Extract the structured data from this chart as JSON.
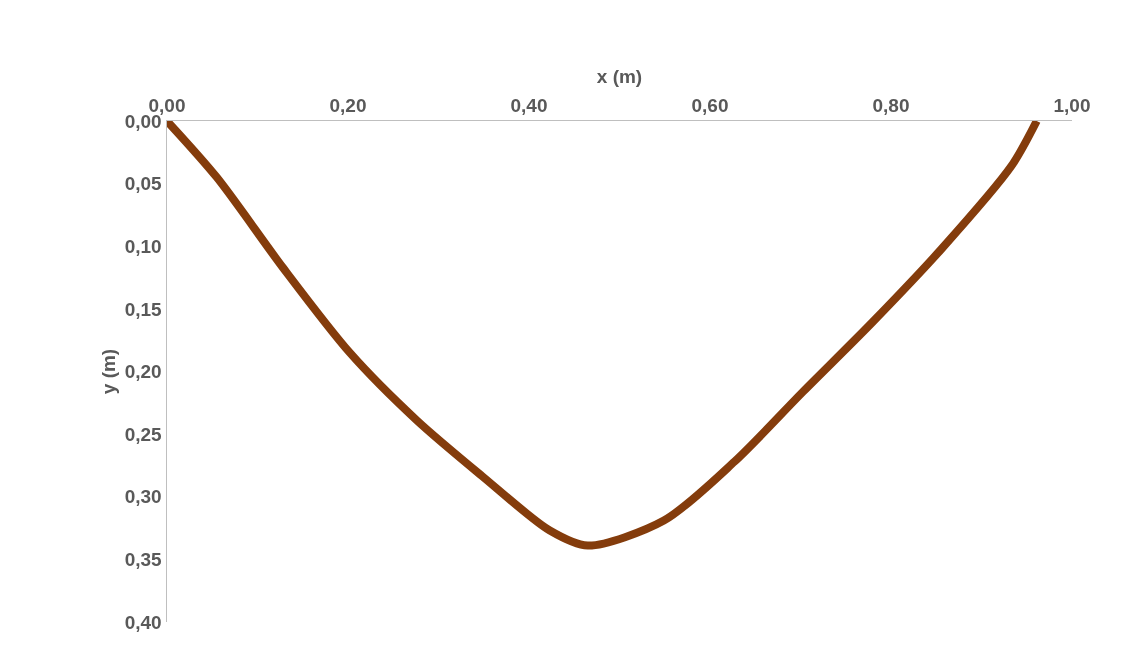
{
  "chart_data": {
    "type": "line",
    "xlabel": "x (m)",
    "ylabel": "y (m)",
    "x": [
      0,
      0.055,
      0.128,
      0.202,
      0.276,
      0.349,
      0.423,
      0.465,
      0.549,
      0.627,
      0.703,
      0.779,
      0.856,
      0.933,
      0.961
    ],
    "series": [
      {
        "color": "#843c0c",
        "values": [
          0,
          0.045,
          0.117,
          0.185,
          0.239,
          0.284,
          0.327,
          0.339,
          0.319,
          0.272,
          0.216,
          0.161,
          0.102,
          0.036,
          0
        ]
      }
    ],
    "xlim": [
      0,
      1
    ],
    "ylim": [
      0.4,
      0
    ],
    "xticks": [
      {
        "value": 0,
        "label": "0,00"
      },
      {
        "value": 0.2,
        "label": "0,20"
      },
      {
        "value": 0.4,
        "label": "0,40"
      },
      {
        "value": 0.6,
        "label": "0,60"
      },
      {
        "value": 0.8,
        "label": "0,80"
      },
      {
        "value": 1,
        "label": "1,00"
      }
    ],
    "yticks": [
      {
        "value": 0,
        "label": "0,00"
      },
      {
        "value": 0.05,
        "label": "0,05"
      },
      {
        "value": 0.1,
        "label": "0,10"
      },
      {
        "value": 0.15,
        "label": "0,15"
      },
      {
        "value": 0.2,
        "label": "0,20"
      },
      {
        "value": 0.25,
        "label": "0,25"
      },
      {
        "value": 0.3,
        "label": "0,30"
      },
      {
        "value": 0.35,
        "label": "0,35"
      },
      {
        "value": 0.4,
        "label": "0,40"
      }
    ],
    "line_style": "solid"
  }
}
